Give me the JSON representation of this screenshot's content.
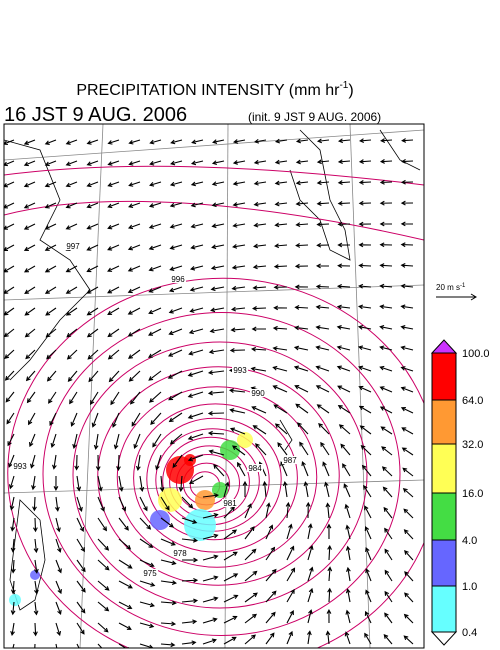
{
  "header": {
    "title": "PRECIPITATION INTENSITY (mm hr",
    "title_exp": "-1",
    "title_close": ")",
    "valid_time": "16 JST 9 AUG. 2006",
    "init_time": "(init. 9 JST 9 AUG. 2006)"
  },
  "reference_vector": {
    "label": "20 m s",
    "exp": "-1"
  },
  "colorbar": {
    "labels": [
      "100.0",
      "64.0",
      "32.0",
      "16.0",
      "4.0",
      "1.0",
      "0.4"
    ],
    "colors": [
      "#ff0000",
      "#ff9933",
      "#ffff55",
      "#44dd44",
      "#6666ff",
      "#66ffff"
    ],
    "over_color": "#cc33ff",
    "under_color": "#ffffff"
  },
  "isobar_labels": [
    "997",
    "996",
    "993",
    "993",
    "990",
    "987",
    "984",
    "981",
    "978",
    "975"
  ]
}
